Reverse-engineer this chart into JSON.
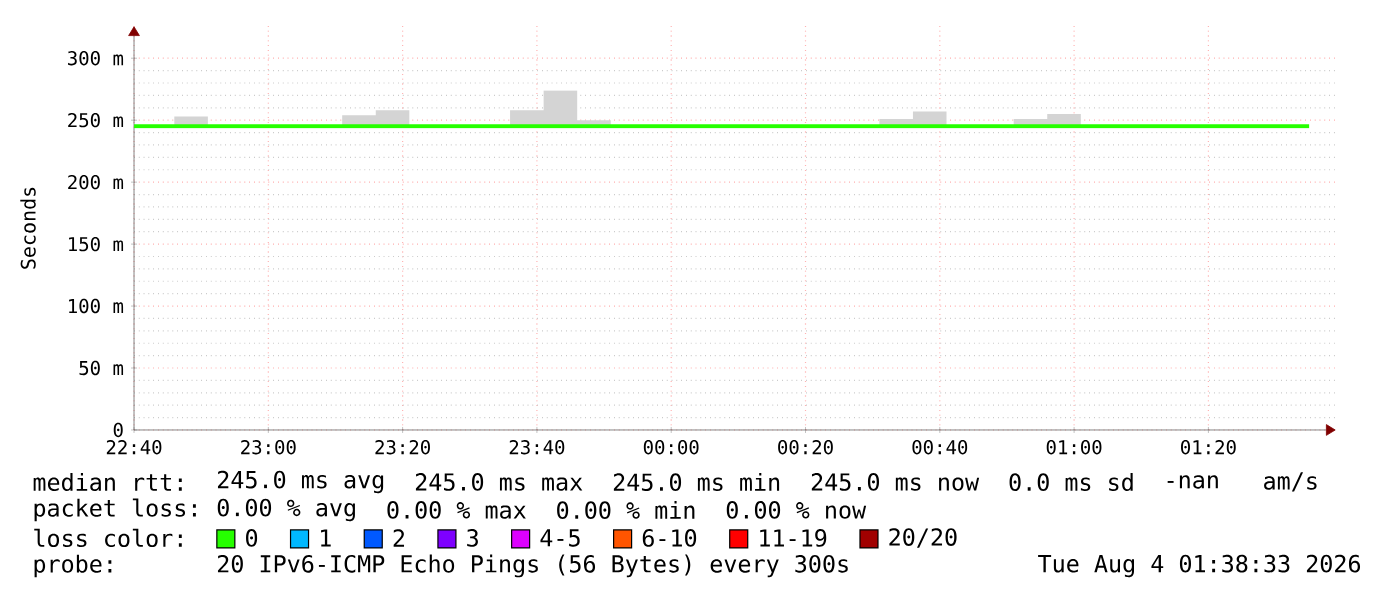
{
  "chart_data": {
    "type": "step",
    "ylabel": "Seconds",
    "legend_title": "loss color:",
    "legend": "bottom",
    "grid": true,
    "x": [
      "2026-08-03T22:40",
      "2026-08-03T22:46",
      "2026-08-03T22:51",
      "2026-08-03T23:11",
      "2026-08-03T23:16",
      "2026-08-03T23:21",
      "2026-08-03T23:36",
      "2026-08-03T23:41",
      "2026-08-03T23:46",
      "2026-08-03T23:51",
      "2026-08-04T00:31",
      "2026-08-04T00:36",
      "2026-08-04T00:41",
      "2026-08-04T00:51",
      "2026-08-04T00:56",
      "2026-08-04T01:01",
      "2026-08-04T01:35"
    ],
    "series": [
      {
        "name": "0",
        "color": "#26ff00",
        "values": [
          245,
          245,
          245,
          245,
          245,
          245,
          245,
          245,
          245,
          245,
          245,
          245,
          245,
          245,
          245,
          245,
          245
        ],
        "lower": [
          245,
          245,
          245,
          245,
          245,
          245,
          245,
          245,
          245,
          245,
          245,
          245,
          245,
          245,
          245,
          245,
          245
        ],
        "upper": [
          245,
          253,
          245,
          254,
          258,
          245,
          258,
          274,
          250,
          245,
          251,
          257,
          245,
          251,
          255,
          245,
          245
        ]
      },
      {
        "name": "1",
        "color": "#00b8ff",
        "values": [
          null,
          null,
          null,
          null,
          null,
          null,
          null,
          null,
          null,
          null,
          null,
          null,
          null,
          null,
          null,
          null,
          null
        ]
      },
      {
        "name": "2",
        "color": "#0059ff",
        "values": [
          null,
          null,
          null,
          null,
          null,
          null,
          null,
          null,
          null,
          null,
          null,
          null,
          null,
          null,
          null,
          null,
          null
        ]
      },
      {
        "name": "3",
        "color": "#7e00ff",
        "values": [
          null,
          null,
          null,
          null,
          null,
          null,
          null,
          null,
          null,
          null,
          null,
          null,
          null,
          null,
          null,
          null,
          null
        ]
      },
      {
        "name": "4-5",
        "color": "#dd00ff",
        "values": [
          null,
          null,
          null,
          null,
          null,
          null,
          null,
          null,
          null,
          null,
          null,
          null,
          null,
          null,
          null,
          null,
          null
        ]
      },
      {
        "name": "6-10",
        "color": "#ff5500",
        "values": [
          null,
          null,
          null,
          null,
          null,
          null,
          null,
          null,
          null,
          null,
          null,
          null,
          null,
          null,
          null,
          null,
          null
        ]
      },
      {
        "name": "11-19",
        "color": "#ff0000",
        "values": [
          null,
          null,
          null,
          null,
          null,
          null,
          null,
          null,
          null,
          null,
          null,
          null,
          null,
          null,
          null,
          null,
          null
        ]
      },
      {
        "name": "20/20",
        "color": "#a10000",
        "values": [
          null,
          null,
          null,
          null,
          null,
          null,
          null,
          null,
          null,
          null,
          null,
          null,
          null,
          null,
          null,
          null,
          null
        ]
      }
    ],
    "xlim": [
      "2026-08-03T22:40",
      "2026-08-04T01:39"
    ],
    "ylim": [
      0,
      326
    ],
    "xticks": [
      {
        "value": "2026-08-03T22:40",
        "label": "22:40"
      },
      {
        "value": "2026-08-03T23:00",
        "label": "23:00"
      },
      {
        "value": "2026-08-03T23:20",
        "label": "23:20"
      },
      {
        "value": "2026-08-03T23:40",
        "label": "23:40"
      },
      {
        "value": "2026-08-04T00:00",
        "label": "00:00"
      },
      {
        "value": "2026-08-04T00:20",
        "label": "00:20"
      },
      {
        "value": "2026-08-04T00:40",
        "label": "00:40"
      },
      {
        "value": "2026-08-04T01:00",
        "label": "01:00"
      },
      {
        "value": "2026-08-04T01:20",
        "label": "01:20"
      }
    ],
    "yticks": [
      0,
      {
        "value": 50,
        "label": "50 m"
      },
      {
        "value": 100,
        "label": "100 m"
      },
      {
        "value": 150,
        "label": "150 m"
      },
      {
        "value": 200,
        "label": "200 m"
      },
      {
        "value": 250,
        "label": "250 m"
      },
      {
        "value": 300,
        "label": "300 m"
      }
    ],
    "annotations": [
      "median rtt:",
      "245.0 ms avg",
      "245.0 ms max",
      "245.0 ms min",
      "245.0 ms now",
      "0.0 ms sd",
      "-nan",
      "am/s",
      "packet loss:",
      "0.00 % avg",
      "0.00 % max",
      "0.00 % min",
      "0.00 % now",
      "probe:",
      "20 IPv6-ICMP Echo Pings (56 Bytes) every 300s",
      "Tue Aug 4 01:38:33 2026"
    ]
  }
}
